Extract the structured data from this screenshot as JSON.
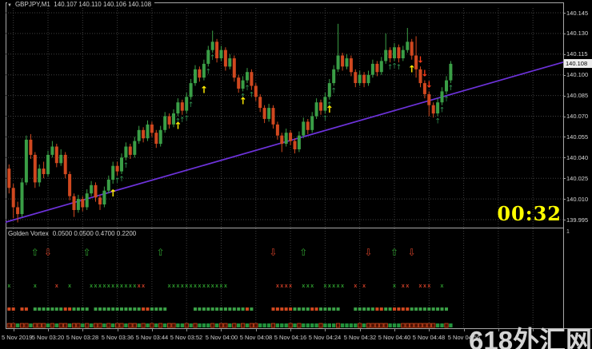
{
  "header": {
    "dropdown_icon": "▼",
    "symbol": "GBPJPY,M1",
    "ohlc_values": "140.107 140.110 140.106 140.108"
  },
  "countdown": "00:32",
  "watermark": "618外汇网",
  "colors": {
    "background": "#000000",
    "grid": "#3f3f3f",
    "bull": "#3a9e46",
    "bear": "#d0481f",
    "trend": "#6d32da",
    "yellow_arrow": "#ffec00",
    "green_caret": "#2f8f4f",
    "red_arrow": "#ff3c1a",
    "panel_up": "#2f9e2f",
    "panel_down": "#d04028",
    "strip_green": "#22933c",
    "strip_red_fill": "#4a1000",
    "countdown": "#ffff00",
    "axis_text": "#d6d6d6"
  },
  "price_axis": {
    "labels": [
      "140.145",
      "140.130",
      "140.115",
      "140.100",
      "140.085",
      "140.070",
      "140.055",
      "140.040",
      "140.025",
      "140.010",
      "139.995"
    ],
    "current": "140.108"
  },
  "time_axis": {
    "labels": [
      "5 Nov 2019",
      "5 Nov 03:20",
      "5 Nov 03:28",
      "5 Nov 03:36",
      "5 Nov 03:44",
      "5 Nov 03:52",
      "5 Nov 04:00",
      "5 Nov 04:08",
      "5 Nov 04:16",
      "5 Nov 04:24",
      "5 Nov 04:32",
      "5 Nov 04:40",
      "5 Nov 04:48",
      "5 Nov 04:56"
    ]
  },
  "chart_data": {
    "type": "candlestick",
    "symbol": "GBPJPY",
    "timeframe": "M1",
    "date": "5 Nov 2019",
    "start_time": "03:11",
    "interval_min": 1,
    "ylim": [
      139.988,
      140.149
    ],
    "price_gridlines": [
      140.145,
      140.13,
      140.115,
      140.1,
      140.085,
      140.07,
      140.055,
      140.04,
      140.025,
      140.01,
      139.995
    ],
    "current_price": 140.108,
    "trend_line": {
      "i1": -1,
      "p1": 139.993,
      "i2": 130,
      "p2": 140.111
    },
    "candles": [
      [
        140.032,
        140.035,
        140.014,
        140.018
      ],
      [
        140.018,
        140.021,
        139.996,
        140.004
      ],
      [
        140.004,
        140.008,
        139.993,
        139.999
      ],
      [
        139.999,
        140.025,
        139.997,
        140.022
      ],
      [
        140.022,
        140.056,
        140.02,
        140.053
      ],
      [
        140.053,
        140.057,
        140.039,
        140.042
      ],
      [
        140.042,
        140.044,
        140.018,
        140.022
      ],
      [
        140.022,
        140.035,
        140.019,
        140.032
      ],
      [
        140.032,
        140.037,
        140.025,
        140.028
      ],
      [
        140.028,
        140.045,
        140.026,
        140.042
      ],
      [
        140.042,
        140.052,
        140.04,
        140.048
      ],
      [
        140.048,
        140.05,
        140.033,
        140.036
      ],
      [
        140.036,
        140.046,
        140.034,
        140.042
      ],
      [
        140.042,
        140.044,
        140.025,
        140.028
      ],
      [
        140.028,
        140.03,
        140.009,
        140.012
      ],
      [
        140.012,
        140.014,
        139.997,
        140.002
      ],
      [
        140.002,
        140.013,
        140.0,
        140.01
      ],
      [
        140.01,
        140.012,
        140.001,
        140.004
      ],
      [
        140.004,
        140.017,
        140.002,
        140.014
      ],
      [
        140.014,
        140.023,
        140.012,
        140.02
      ],
      [
        140.02,
        140.022,
        140.008,
        140.011
      ],
      [
        140.011,
        140.013,
        140.002,
        140.006
      ],
      [
        140.006,
        140.019,
        140.004,
        140.016
      ],
      [
        140.016,
        140.027,
        140.014,
        140.024
      ],
      [
        140.024,
        140.037,
        140.021,
        140.034
      ],
      [
        140.034,
        140.037,
        140.027,
        140.03
      ],
      [
        140.03,
        140.043,
        140.028,
        140.04
      ],
      [
        140.04,
        140.051,
        140.038,
        140.048
      ],
      [
        140.048,
        140.05,
        140.039,
        140.042
      ],
      [
        140.042,
        140.055,
        140.04,
        140.052
      ],
      [
        140.052,
        140.063,
        140.05,
        140.06
      ],
      [
        140.06,
        140.062,
        140.051,
        140.054
      ],
      [
        140.054,
        140.067,
        140.052,
        140.064
      ],
      [
        140.064,
        140.066,
        140.055,
        140.058
      ],
      [
        140.058,
        140.06,
        140.047,
        140.05
      ],
      [
        140.05,
        140.063,
        140.048,
        140.06
      ],
      [
        140.06,
        140.073,
        140.058,
        140.07
      ],
      [
        140.07,
        140.072,
        140.061,
        140.064
      ],
      [
        140.064,
        140.075,
        140.062,
        140.072
      ],
      [
        140.072,
        140.083,
        140.07,
        140.08
      ],
      [
        140.08,
        140.082,
        140.071,
        140.074
      ],
      [
        140.074,
        140.087,
        140.072,
        140.084
      ],
      [
        140.084,
        140.097,
        140.082,
        140.094
      ],
      [
        140.094,
        140.107,
        140.092,
        140.104
      ],
      [
        140.104,
        140.106,
        140.095,
        140.098
      ],
      [
        140.098,
        140.111,
        140.096,
        140.108
      ],
      [
        140.108,
        140.121,
        140.106,
        140.118
      ],
      [
        140.118,
        140.132,
        140.116,
        140.124
      ],
      [
        140.124,
        140.126,
        140.109,
        140.112
      ],
      [
        140.112,
        140.121,
        140.11,
        140.118
      ],
      [
        140.118,
        140.12,
        140.103,
        140.106
      ],
      [
        140.106,
        140.115,
        140.104,
        140.112
      ],
      [
        140.112,
        140.114,
        140.095,
        140.098
      ],
      [
        140.098,
        140.1,
        140.087,
        140.09
      ],
      [
        140.09,
        140.099,
        140.088,
        140.096
      ],
      [
        140.096,
        140.105,
        140.094,
        140.102
      ],
      [
        140.102,
        140.104,
        140.089,
        140.092
      ],
      [
        140.092,
        140.094,
        140.081,
        140.084
      ],
      [
        140.084,
        140.086,
        140.073,
        140.076
      ],
      [
        140.076,
        140.078,
        140.065,
        140.068
      ],
      [
        140.068,
        140.079,
        140.066,
        140.076
      ],
      [
        140.076,
        140.078,
        140.061,
        140.064
      ],
      [
        140.064,
        140.066,
        140.053,
        140.056
      ],
      [
        140.056,
        140.058,
        140.044,
        140.05
      ],
      [
        140.05,
        140.061,
        140.048,
        140.058
      ],
      [
        140.058,
        140.06,
        140.049,
        140.052
      ],
      [
        140.052,
        140.054,
        140.043,
        140.046
      ],
      [
        140.046,
        140.059,
        140.044,
        140.056
      ],
      [
        140.056,
        140.069,
        140.054,
        140.066
      ],
      [
        140.066,
        140.068,
        140.057,
        140.06
      ],
      [
        140.06,
        140.073,
        140.058,
        140.07
      ],
      [
        140.07,
        140.083,
        140.068,
        140.08
      ],
      [
        140.08,
        140.082,
        140.071,
        140.074
      ],
      [
        140.074,
        140.087,
        140.072,
        140.084
      ],
      [
        140.084,
        140.097,
        140.082,
        140.094
      ],
      [
        140.094,
        140.107,
        140.092,
        140.104
      ],
      [
        140.104,
        140.137,
        140.102,
        140.114
      ],
      [
        140.114,
        140.116,
        140.103,
        140.106
      ],
      [
        140.106,
        140.115,
        140.104,
        140.112
      ],
      [
        140.112,
        140.114,
        140.099,
        140.102
      ],
      [
        140.102,
        140.104,
        140.091,
        140.094
      ],
      [
        140.094,
        140.103,
        140.092,
        140.1
      ],
      [
        140.1,
        140.102,
        140.091,
        140.094
      ],
      [
        140.094,
        140.103,
        140.092,
        140.1
      ],
      [
        140.1,
        140.111,
        140.098,
        140.108
      ],
      [
        140.108,
        140.11,
        140.099,
        140.102
      ],
      [
        140.102,
        140.113,
        140.1,
        140.11
      ],
      [
        140.11,
        140.13,
        140.108,
        140.118
      ],
      [
        140.118,
        140.12,
        140.109,
        140.112
      ],
      [
        140.112,
        140.123,
        140.11,
        140.12
      ],
      [
        140.12,
        140.122,
        140.109,
        140.112
      ],
      [
        140.112,
        140.121,
        140.11,
        140.118
      ],
      [
        140.118,
        140.134,
        140.116,
        140.124
      ],
      [
        140.124,
        140.126,
        140.111,
        140.114
      ],
      [
        140.114,
        140.128,
        140.098,
        140.104
      ],
      [
        140.104,
        140.106,
        140.091,
        140.094
      ],
      [
        140.094,
        140.096,
        140.083,
        140.086
      ],
      [
        140.086,
        140.088,
        140.07,
        140.078
      ],
      [
        140.078,
        140.08,
        140.069,
        140.072
      ],
      [
        140.072,
        140.083,
        140.07,
        140.08
      ],
      [
        140.08,
        140.091,
        140.078,
        140.088
      ],
      [
        140.088,
        140.099,
        140.086,
        140.096
      ],
      [
        140.096,
        140.11,
        140.094,
        140.108
      ]
    ],
    "markers": {
      "yellow_up": [
        24,
        39,
        45,
        54,
        74,
        93
      ],
      "green_caret": [
        25,
        26,
        27,
        39,
        40,
        41,
        42,
        46,
        47,
        54,
        55,
        56,
        73,
        74,
        75,
        88,
        89,
        90,
        99,
        100,
        101,
        102
      ],
      "red_down": [
        95,
        96,
        97
      ]
    },
    "subwindow": {
      "title": "Golden Vortex",
      "params": "0.0500 0.0500 0.4700 0.2200",
      "scale_label": "1",
      "arrow_up": [
        6,
        18,
        35,
        68,
        89
      ],
      "arrow_down": [
        9,
        61,
        83,
        93
      ],
      "x_green": [
        0,
        6,
        14,
        19,
        20,
        21,
        22,
        23,
        24,
        25,
        26,
        27,
        28,
        29,
        37,
        38,
        39,
        40,
        41,
        42,
        43,
        44,
        45,
        46,
        47,
        48,
        49,
        50,
        68,
        69,
        70,
        73,
        74,
        75,
        76,
        77,
        89,
        100
      ],
      "x_red": [
        11,
        30,
        31,
        62,
        63,
        64,
        65,
        80,
        82,
        91,
        92,
        95,
        96,
        97
      ],
      "bar_segments": [
        [
          0,
          1,
          "r"
        ],
        [
          3,
          4,
          "r"
        ],
        [
          6,
          12,
          "g"
        ],
        [
          13,
          14,
          "r"
        ],
        [
          15,
          18,
          "g"
        ],
        [
          20,
          30,
          "g"
        ],
        [
          31,
          32,
          "r"
        ],
        [
          33,
          36,
          "g"
        ],
        [
          43,
          54,
          "g"
        ],
        [
          55,
          55,
          "r"
        ],
        [
          56,
          56,
          "g"
        ],
        [
          61,
          65,
          "r"
        ],
        [
          66,
          69,
          "g"
        ],
        [
          70,
          71,
          "r"
        ],
        [
          72,
          76,
          "g"
        ],
        [
          80,
          84,
          "g"
        ],
        [
          85,
          86,
          "r"
        ],
        [
          87,
          88,
          "g"
        ],
        [
          89,
          92,
          "r"
        ],
        [
          93,
          101,
          "g"
        ]
      ],
      "strip": "rrgrrgrrrgrgrrgrrgrgrrgrgrrgrrgrgrgrgrrggrgrgggrgrrgrgrgrrgggrgggrgrggggrgggrggggrgrrrrrgggrrrrrrrrggrg"
    }
  }
}
